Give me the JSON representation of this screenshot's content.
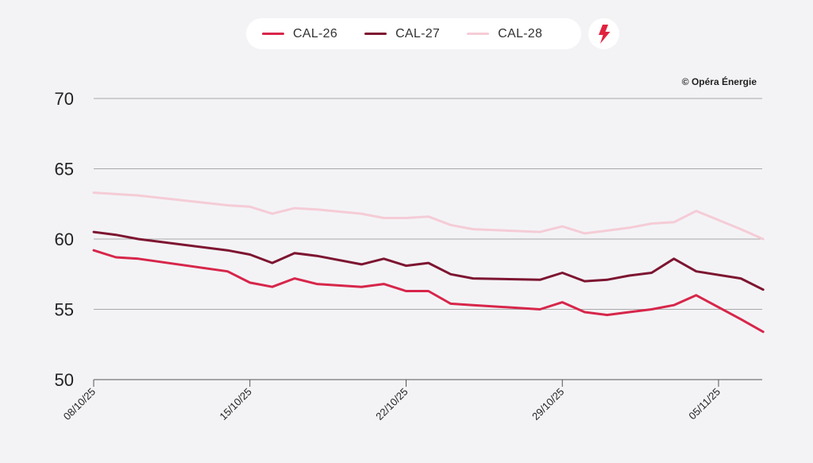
{
  "legend": {
    "items": [
      {
        "label": "CAL-26",
        "color": "#d7264a"
      },
      {
        "label": "CAL-27",
        "color": "#7d1531"
      },
      {
        "label": "CAL-28",
        "color": "#f5ccd6"
      }
    ],
    "action_icon": "lightning-bolt-icon"
  },
  "credit": "© Opéra Énergie",
  "chart_data": {
    "type": "line",
    "title": "",
    "xlabel": "",
    "ylabel": "",
    "ylim": [
      50,
      70
    ],
    "yticks": [
      50,
      55,
      60,
      65,
      70
    ],
    "grid": true,
    "legend_position": "top-center",
    "x_tick_labels": [
      "08/10/25",
      "15/10/25",
      "22/10/25",
      "29/10/25",
      "05/11/25"
    ],
    "x_tick_days": [
      0,
      7,
      14,
      21,
      28
    ],
    "x_days": [
      0,
      1,
      2,
      6,
      7,
      8,
      9,
      10,
      12,
      13,
      14,
      15,
      16,
      17,
      20,
      21,
      22,
      23,
      24,
      25,
      26,
      27,
      29,
      30
    ],
    "series": [
      {
        "name": "CAL-26",
        "color": "#d7264a",
        "values": [
          59.2,
          58.7,
          58.6,
          57.7,
          56.9,
          56.6,
          57.2,
          56.8,
          56.6,
          56.8,
          56.3,
          56.3,
          55.4,
          55.3,
          55.0,
          55.5,
          54.8,
          54.6,
          54.8,
          55.0,
          55.3,
          56.0,
          54.3,
          53.4
        ]
      },
      {
        "name": "CAL-27",
        "color": "#7d1531",
        "values": [
          60.5,
          60.3,
          60.0,
          59.2,
          58.9,
          58.3,
          59.0,
          58.8,
          58.2,
          58.6,
          58.1,
          58.3,
          57.5,
          57.2,
          57.1,
          57.6,
          57.0,
          57.1,
          57.4,
          57.6,
          58.6,
          57.7,
          57.2,
          56.4
        ]
      },
      {
        "name": "CAL-28",
        "color": "#f5ccd6",
        "values": [
          63.3,
          63.2,
          63.1,
          62.4,
          62.3,
          61.8,
          62.2,
          62.1,
          61.8,
          61.5,
          61.5,
          61.6,
          61.0,
          60.7,
          60.5,
          60.9,
          60.4,
          60.6,
          60.8,
          61.1,
          61.2,
          62.0,
          60.7,
          60.0
        ]
      }
    ]
  }
}
